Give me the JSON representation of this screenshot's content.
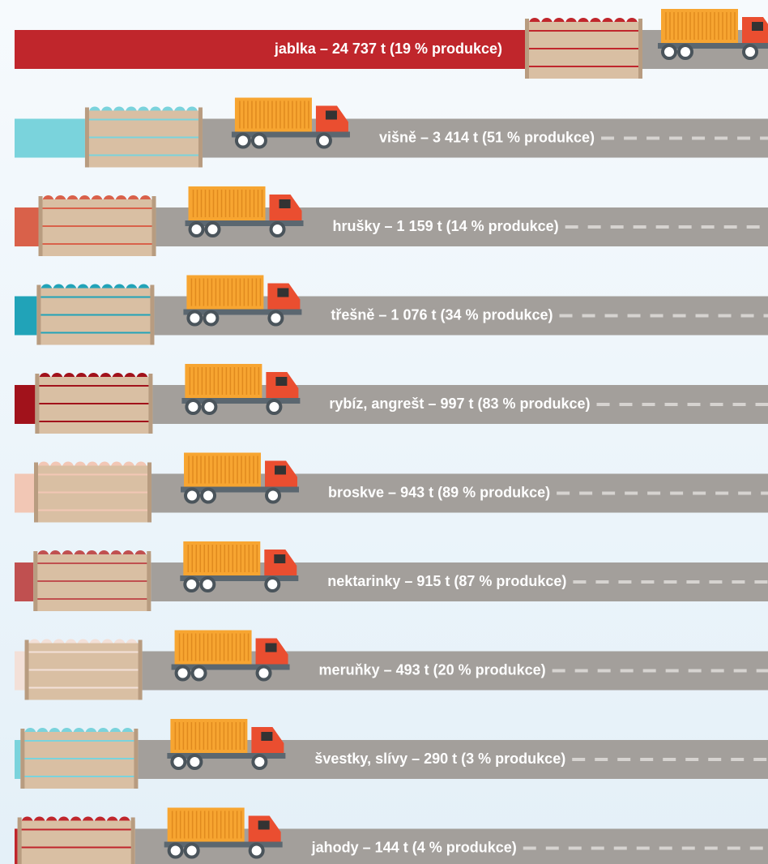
{
  "chart_data": {
    "type": "bar",
    "values": [
      24737,
      3414,
      1159,
      1076,
      997,
      943,
      915,
      493,
      290,
      144
    ],
    "value_labels": [
      "jablka – 24 737 t (19 % produkce)",
      "višně – 3 414 t (51 % produkce)",
      "hrušky – 1 159 t (14 % produkce)",
      "třešně – 1 076 t (34 % produkce)",
      "rybíz, angrešt – 997 t (83 % produkce)",
      "broskve – 943 t (89 % produkce)",
      "nektarinky – 915 t (87 % produkce)",
      "meruňky – 493 t (20 % produkce)",
      "švestky, slívy – 290 t (3 % produkce)",
      "jahody – 144 t (4 % produkce)"
    ],
    "colors": [
      "#c0262c",
      "#7ad3dc",
      "#d9614a",
      "#21a3b8",
      "#a1121b",
      "#f2c7b5",
      "#c05050",
      "#f3e0d8",
      "#7ad3dc",
      "#c0262c"
    ]
  }
}
